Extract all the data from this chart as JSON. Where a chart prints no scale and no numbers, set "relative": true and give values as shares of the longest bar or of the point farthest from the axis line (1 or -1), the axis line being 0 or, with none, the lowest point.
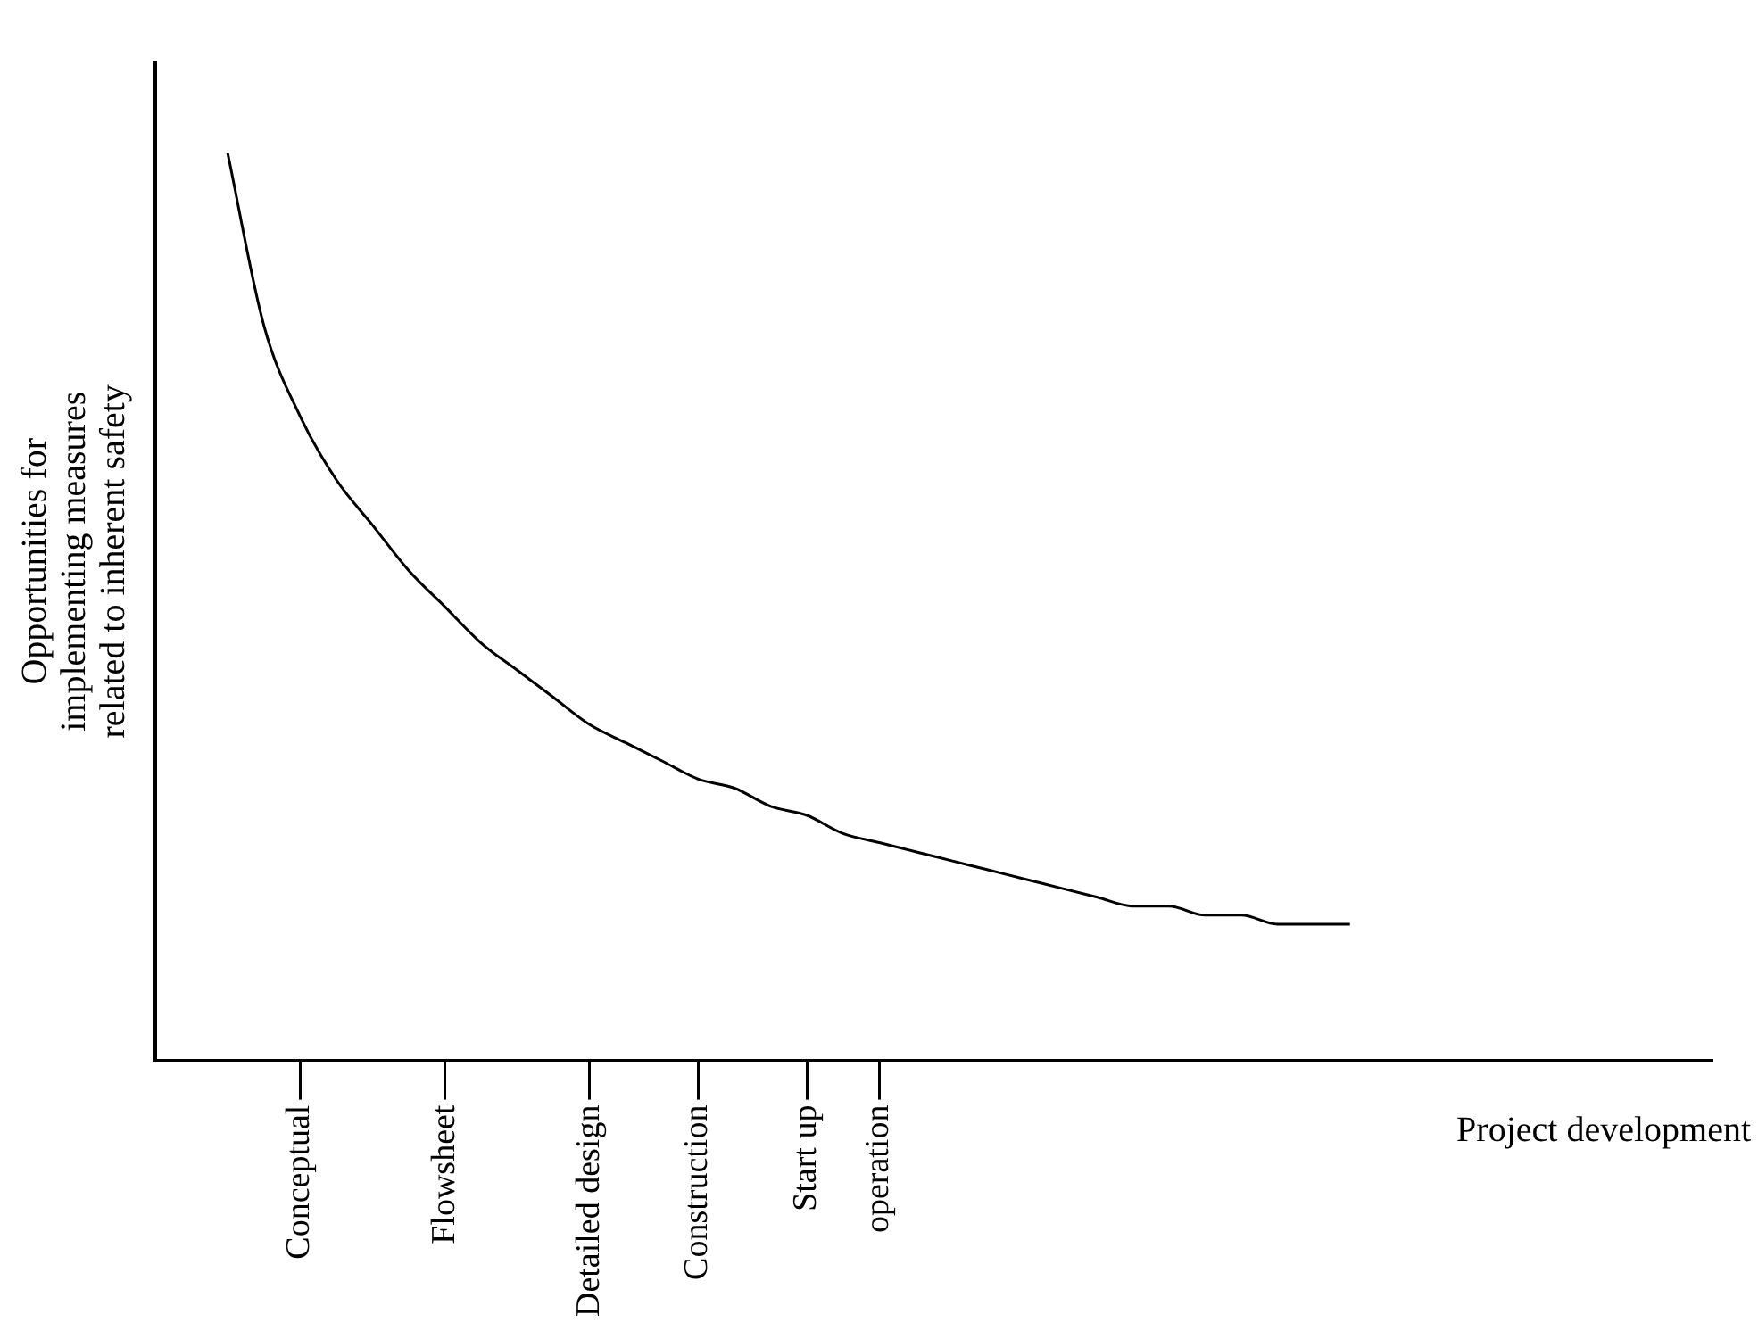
{
  "chart_data": {
    "type": "line",
    "relative": true,
    "xlabel": "Project development",
    "ylabel": "Opportunities for\nimplementing measures\nrelated to inherent safety",
    "categories": [
      null,
      null,
      null,
      null,
      "Conceptual",
      null,
      null,
      null,
      "Flowsheet",
      null,
      null,
      null,
      "Detailed design",
      null,
      null,
      "Construction",
      null,
      null,
      "Start up",
      null,
      "operation",
      null,
      null,
      null,
      null,
      null,
      null,
      null,
      null,
      null,
      null,
      null,
      null,
      null,
      null,
      null,
      null,
      null,
      null,
      null,
      null,
      null,
      null,
      null
    ],
    "series": [
      {
        "color": "#000000",
        "values": [
          null,
          null,
          1,
          0.81,
          0.71,
          0.64,
          0.59,
          0.54,
          0.5,
          0.46,
          0.43,
          0.4,
          0.37,
          0.35,
          0.33,
          0.31,
          0.3,
          0.28,
          0.27,
          0.25,
          0.24,
          0.23,
          0.22,
          0.21,
          0.2,
          0.19,
          0.18,
          0.17,
          0.17,
          0.16,
          0.16,
          0.15,
          0.15,
          0.15,
          null,
          null,
          null,
          null,
          null,
          null,
          null,
          null,
          null,
          null
        ]
      }
    ],
    "grid": false,
    "legend": false,
    "marker": "none",
    "line_style": "solid"
  }
}
